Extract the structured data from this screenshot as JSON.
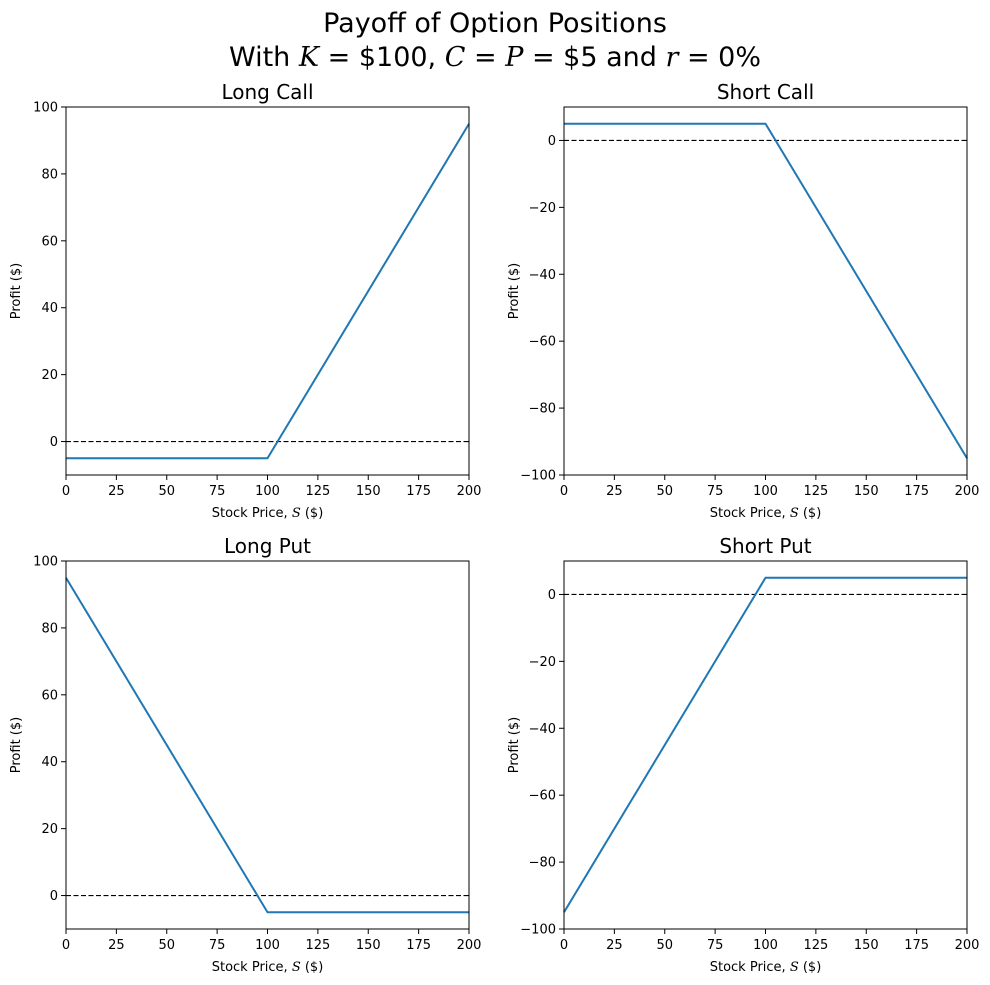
{
  "figure": {
    "title_line1": "Payoff of Option Positions",
    "title_line2": {
      "pre": "With ",
      "k_var": "K",
      "k_val": " = $100, ",
      "c_var": "C",
      "eq1": " = ",
      "p_var": "P",
      "cp_val": " = $5 and ",
      "r_var": "r",
      "r_val": " = 0%"
    }
  },
  "chart_data": [
    {
      "type": "line",
      "title": "Long Call",
      "xlabel": {
        "text": "Stock Price, ",
        "var": "S",
        "unit": " ($)"
      },
      "ylabel": "Profit ($)",
      "xlim": [
        0,
        200
      ],
      "ylim": [
        -10,
        100
      ],
      "xticks": [
        0,
        25,
        50,
        75,
        100,
        125,
        150,
        175,
        200
      ],
      "yticks": [
        0,
        20,
        40,
        60,
        80,
        100
      ],
      "ytick_labels": [
        "0",
        "20",
        "40",
        "60",
        "80",
        "100"
      ],
      "series": [
        {
          "x": [
            0,
            100,
            200
          ],
          "y": [
            -5,
            -5,
            95
          ],
          "color": "#1f77b4"
        }
      ],
      "reference_line": {
        "y": 0,
        "style": "dashed",
        "color": "#000000"
      }
    },
    {
      "type": "line",
      "title": "Short Call",
      "xlabel": {
        "text": "Stock Price, ",
        "var": "S",
        "unit": " ($)"
      },
      "ylabel": "Profit ($)",
      "xlim": [
        0,
        200
      ],
      "ylim": [
        -100,
        10
      ],
      "xticks": [
        0,
        25,
        50,
        75,
        100,
        125,
        150,
        175,
        200
      ],
      "yticks": [
        -100,
        -80,
        -60,
        -40,
        -20,
        0
      ],
      "ytick_labels": [
        "−100",
        "−80",
        "−60",
        "−40",
        "−20",
        "0"
      ],
      "series": [
        {
          "x": [
            0,
            100,
            200
          ],
          "y": [
            5,
            5,
            -95
          ],
          "color": "#1f77b4"
        }
      ],
      "reference_line": {
        "y": 0,
        "style": "dashed",
        "color": "#000000"
      }
    },
    {
      "type": "line",
      "title": "Long Put",
      "xlabel": {
        "text": "Stock Price, ",
        "var": "S",
        "unit": " ($)"
      },
      "ylabel": "Profit ($)",
      "xlim": [
        0,
        200
      ],
      "ylim": [
        -10,
        100
      ],
      "xticks": [
        0,
        25,
        50,
        75,
        100,
        125,
        150,
        175,
        200
      ],
      "yticks": [
        0,
        20,
        40,
        60,
        80,
        100
      ],
      "ytick_labels": [
        "0",
        "20",
        "40",
        "60",
        "80",
        "100"
      ],
      "series": [
        {
          "x": [
            0,
            100,
            200
          ],
          "y": [
            95,
            -5,
            -5
          ],
          "color": "#1f77b4"
        }
      ],
      "reference_line": {
        "y": 0,
        "style": "dashed",
        "color": "#000000"
      }
    },
    {
      "type": "line",
      "title": "Short Put",
      "xlabel": {
        "text": "Stock Price, ",
        "var": "S",
        "unit": " ($)"
      },
      "ylabel": "Profit ($)",
      "xlim": [
        0,
        200
      ],
      "ylim": [
        -100,
        10
      ],
      "xticks": [
        0,
        25,
        50,
        75,
        100,
        125,
        150,
        175,
        200
      ],
      "yticks": [
        -100,
        -80,
        -60,
        -40,
        -20,
        0
      ],
      "ytick_labels": [
        "−100",
        "−80",
        "−60",
        "−40",
        "−20",
        "0"
      ],
      "series": [
        {
          "x": [
            0,
            100,
            200
          ],
          "y": [
            -95,
            5,
            5
          ],
          "color": "#1f77b4"
        }
      ],
      "reference_line": {
        "y": 0,
        "style": "dashed",
        "color": "#000000"
      }
    }
  ]
}
